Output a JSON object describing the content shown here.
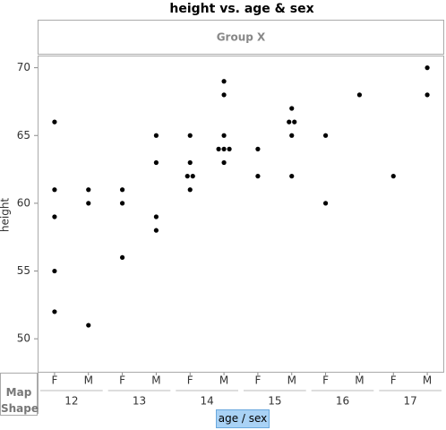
{
  "chart_data": {
    "type": "scatter",
    "title": "height vs. age & sex",
    "y_label": "height",
    "group_x_label": "Group X",
    "x_label": "age / sex",
    "map_shape_label": "Map Shape",
    "color": "#000000",
    "ylim": [
      47.5,
      70.9
    ],
    "yticks": [
      50,
      55,
      60,
      65,
      70
    ],
    "groups": [
      {
        "label": "12",
        "subgroups": [
          {
            "label": "F",
            "values": [
              66,
              61,
              59,
              55,
              52
            ]
          },
          {
            "label": "M",
            "values": [
              61,
              60,
              51
            ]
          }
        ]
      },
      {
        "label": "13",
        "subgroups": [
          {
            "label": "F",
            "values": [
              61,
              60,
              56
            ]
          },
          {
            "label": "M",
            "values": [
              65,
              63,
              59,
              58
            ]
          }
        ]
      },
      {
        "label": "14",
        "subgroups": [
          {
            "label": "F",
            "values": [
              65,
              63,
              62,
              62,
              61
            ]
          },
          {
            "label": "M",
            "values": [
              69,
              68,
              65,
              64,
              64,
              64,
              63
            ]
          }
        ]
      },
      {
        "label": "15",
        "subgroups": [
          {
            "label": "F",
            "values": [
              64,
              62
            ]
          },
          {
            "label": "M",
            "values": [
              67,
              66,
              66,
              65,
              62
            ]
          }
        ]
      },
      {
        "label": "16",
        "subgroups": [
          {
            "label": "F",
            "values": [
              65,
              60
            ]
          },
          {
            "label": "M",
            "values": [
              68
            ]
          }
        ]
      },
      {
        "label": "17",
        "subgroups": [
          {
            "label": "F",
            "values": [
              62
            ]
          },
          {
            "label": "M",
            "values": [
              70,
              68
            ]
          }
        ]
      }
    ]
  }
}
